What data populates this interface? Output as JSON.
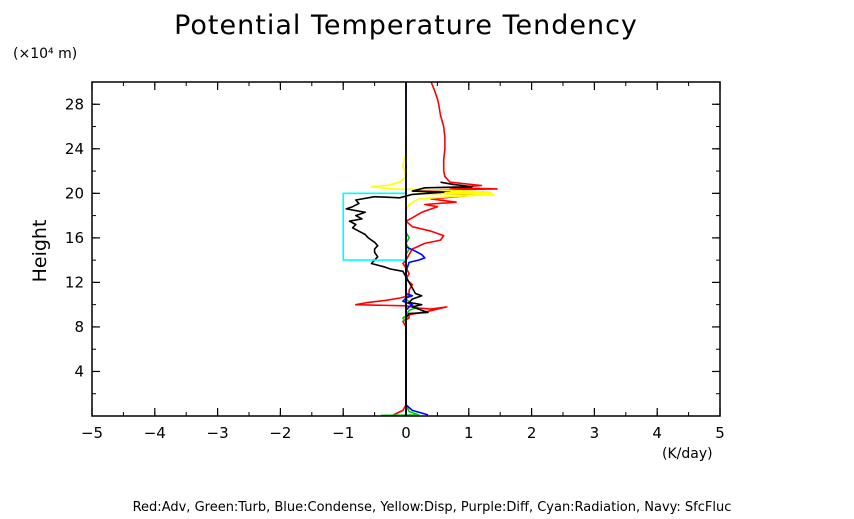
{
  "chart_data": {
    "type": "line",
    "title": "Potential Temperature Tendency",
    "ylabel": "Height",
    "yunit": "(×10⁴ m)",
    "xunit": "(K/day)",
    "footer": "Red:Adv, Green:Turb, Blue:Condense, Yellow:Disp, Purple:Diff, Cyan:Radiation, Navy: SfcFluc",
    "xlim": [
      -5,
      5
    ],
    "ylim": [
      0,
      30
    ],
    "xticks": [
      -5,
      -4,
      -3,
      -2,
      -1,
      0,
      1,
      2,
      3,
      4,
      5
    ],
    "yticks": [
      4,
      8,
      12,
      16,
      20,
      24,
      28
    ],
    "xtick_labels": [
      "−5",
      "−4",
      "−3",
      "−2",
      "−1",
      "0",
      "1",
      "2",
      "3",
      "4",
      "5"
    ],
    "ytick_labels": [
      "4",
      "8",
      "12",
      "16",
      "20",
      "24",
      "28"
    ],
    "series": [
      {
        "color": "#ff0000",
        "points": [
          [
            0.4,
            30
          ],
          [
            0.45,
            29.3
          ],
          [
            0.5,
            28.5
          ],
          [
            0.52,
            28
          ],
          [
            0.55,
            27
          ],
          [
            0.6,
            26
          ],
          [
            0.62,
            25
          ],
          [
            0.62,
            24
          ],
          [
            0.6,
            23
          ],
          [
            0.6,
            22
          ],
          [
            0.62,
            21.5
          ],
          [
            0.7,
            21
          ],
          [
            1.2,
            20.7
          ],
          [
            0.7,
            20.5
          ],
          [
            1.45,
            20.4
          ],
          [
            0.2,
            20.3
          ],
          [
            0.7,
            20.1
          ],
          [
            0.3,
            20.0
          ],
          [
            1.2,
            19.9
          ],
          [
            0.4,
            19.5
          ],
          [
            0.8,
            19.2
          ],
          [
            0.3,
            19.0
          ],
          [
            0.5,
            18.8
          ],
          [
            0.25,
            18.3
          ],
          [
            0.1,
            17.8
          ],
          [
            0.0,
            17.5
          ],
          [
            0.1,
            17.0
          ],
          [
            0.4,
            16.6
          ],
          [
            0.6,
            16.2
          ],
          [
            0.55,
            15.8
          ],
          [
            0.3,
            15.5
          ],
          [
            0.1,
            15.0
          ],
          [
            0.05,
            14.5
          ],
          [
            0.0,
            14.0
          ],
          [
            -0.05,
            13.7
          ],
          [
            0.0,
            13.3
          ],
          [
            0.05,
            12.8
          ],
          [
            0.0,
            12.3
          ],
          [
            0.1,
            11.8
          ],
          [
            0.05,
            11.3
          ],
          [
            0.05,
            10.8
          ],
          [
            -0.1,
            10.6
          ],
          [
            -0.3,
            10.4
          ],
          [
            -0.6,
            10.2
          ],
          [
            -0.8,
            10.0
          ],
          [
            0.0,
            9.9
          ],
          [
            0.2,
            9.7
          ],
          [
            0.4,
            9.6
          ],
          [
            0.65,
            9.8
          ],
          [
            0.35,
            9.4
          ],
          [
            0.05,
            9.1
          ],
          [
            0.05,
            8.8
          ],
          [
            -0.05,
            8.5
          ],
          [
            0.0,
            8.0
          ],
          [
            0.0,
            7.5
          ],
          [
            0.0,
            6.5
          ],
          [
            0.0,
            4
          ],
          [
            0.0,
            1
          ],
          [
            -0.05,
            0.5
          ],
          [
            -0.2,
            0.1
          ]
        ]
      },
      {
        "color": "#00cc00",
        "points": [
          [
            0.0,
            17
          ],
          [
            0.0,
            16.5
          ],
          [
            0.05,
            16.0
          ],
          [
            0.0,
            15.5
          ],
          [
            0.05,
            15.0
          ],
          [
            0.0,
            14.5
          ],
          [
            0.0,
            12
          ],
          [
            0.0,
            10.5
          ],
          [
            0.1,
            10.0
          ],
          [
            0.15,
            9.7
          ],
          [
            0.05,
            9.5
          ],
          [
            0.0,
            9.0
          ],
          [
            -0.05,
            8.8
          ],
          [
            0.0,
            8.5
          ],
          [
            0.0,
            8.0
          ],
          [
            0.0,
            4
          ],
          [
            0.0,
            1
          ],
          [
            0.05,
            0.4
          ],
          [
            0.2,
            0.1
          ],
          [
            -0.4,
            0.05
          ]
        ]
      },
      {
        "color": "#0000ff",
        "points": [
          [
            0.0,
            15.2
          ],
          [
            0.15,
            14.8
          ],
          [
            0.25,
            14.5
          ],
          [
            0.3,
            14.2
          ],
          [
            0.2,
            14.0
          ],
          [
            0.05,
            13.8
          ],
          [
            0.0,
            13
          ],
          [
            0.0,
            11.0
          ],
          [
            0.1,
            10.8
          ],
          [
            0.0,
            10.6
          ],
          [
            -0.05,
            10.3
          ],
          [
            0.1,
            10.0
          ],
          [
            0.05,
            9.8
          ],
          [
            0.0,
            9.5
          ],
          [
            0.0,
            4
          ],
          [
            0.0,
            1
          ],
          [
            0.1,
            0.5
          ],
          [
            0.35,
            0.1
          ]
        ]
      },
      {
        "color": "#ffff00",
        "points": [
          [
            0.0,
            25.5
          ],
          [
            0.0,
            23.5
          ],
          [
            -0.05,
            22.5
          ],
          [
            0.0,
            21.5
          ],
          [
            -0.1,
            21.0
          ],
          [
            -0.3,
            20.7
          ],
          [
            -0.55,
            20.6
          ],
          [
            -0.2,
            20.4
          ],
          [
            0.6,
            20.3
          ],
          [
            1.35,
            20.1
          ],
          [
            0.2,
            20.0
          ],
          [
            1.4,
            19.9
          ],
          [
            0.7,
            19.7
          ],
          [
            0.2,
            19.5
          ],
          [
            0.05,
            19.0
          ],
          [
            0.0,
            18.5
          ]
        ]
      },
      {
        "color": "#000000",
        "points": [
          [
            0.55,
            21.0
          ],
          [
            0.75,
            20.8
          ],
          [
            0.9,
            20.7
          ],
          [
            1.05,
            20.6
          ],
          [
            0.3,
            20.5
          ],
          [
            0.1,
            20.2
          ],
          [
            0.6,
            20.1
          ],
          [
            0.1,
            19.9
          ],
          [
            -0.1,
            19.6
          ],
          [
            -0.5,
            19.7
          ],
          [
            -0.8,
            19.4
          ],
          [
            -0.75,
            19.1
          ],
          [
            -0.85,
            18.8
          ],
          [
            -0.95,
            18.6
          ],
          [
            -0.65,
            18.3
          ],
          [
            -0.8,
            18.0
          ],
          [
            -0.7,
            17.7
          ],
          [
            -0.9,
            17.5
          ],
          [
            -0.8,
            17.2
          ],
          [
            -0.85,
            16.9
          ],
          [
            -0.75,
            16.6
          ],
          [
            -0.65,
            16.3
          ],
          [
            -0.6,
            16.0
          ],
          [
            -0.5,
            15.6
          ],
          [
            -0.45,
            15.3
          ],
          [
            -0.5,
            15.0
          ],
          [
            -0.5,
            14.7
          ],
          [
            -0.45,
            14.3
          ],
          [
            -0.5,
            14.0
          ],
          [
            -0.55,
            13.7
          ],
          [
            -0.35,
            13.4
          ],
          [
            -0.25,
            13.2
          ],
          [
            -0.05,
            13.0
          ],
          [
            0.0,
            12.5
          ],
          [
            0.05,
            12.0
          ],
          [
            0.1,
            11.5
          ],
          [
            0.15,
            11.0
          ],
          [
            0.25,
            10.8
          ],
          [
            0.1,
            10.5
          ],
          [
            0.05,
            10.2
          ],
          [
            0.25,
            10.0
          ],
          [
            0.1,
            9.8
          ],
          [
            0.25,
            9.5
          ],
          [
            0.35,
            9.3
          ],
          [
            0.05,
            9.2
          ],
          [
            0.0,
            8.8
          ]
        ]
      },
      {
        "color": "#00ffff",
        "points": [
          [
            0.0,
            20.0
          ],
          [
            -1.0,
            20.0
          ],
          [
            -1.0,
            14.0
          ],
          [
            0.0,
            14.0
          ]
        ]
      },
      {
        "color": "#000080",
        "points": [
          [
            0.0,
            30
          ],
          [
            0.0,
            25
          ],
          [
            0.0,
            20
          ],
          [
            0.0,
            15
          ],
          [
            0.0,
            10
          ],
          [
            0.0,
            5
          ],
          [
            0.0,
            0
          ]
        ]
      },
      {
        "color": "#000000",
        "points": [
          [
            0.0,
            30
          ],
          [
            0.0,
            0
          ]
        ]
      }
    ]
  }
}
